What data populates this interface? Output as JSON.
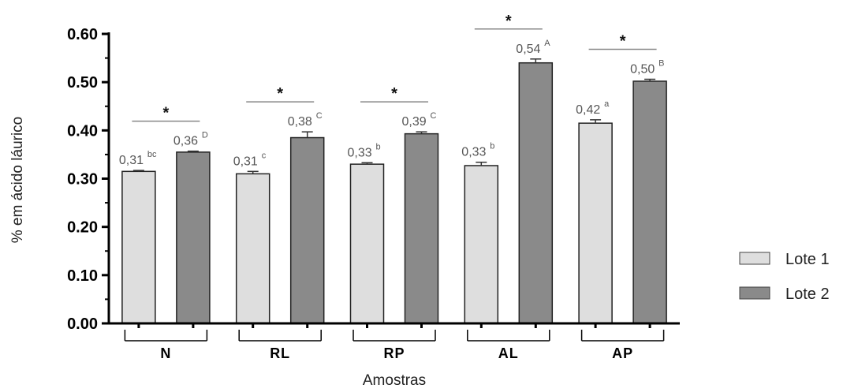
{
  "chart_data": {
    "type": "bar",
    "xlabel": "Amostras",
    "ylabel": "% em ácido láurico",
    "ylim": [
      0,
      0.6
    ],
    "yticks": [
      "0.00",
      "0.10",
      "0.20",
      "0.30",
      "0.40",
      "0.50",
      "0.60"
    ],
    "categories": [
      "N",
      "RL",
      "RP",
      "AL",
      "AP"
    ],
    "series": [
      {
        "name": "Lote 1",
        "color": "#dedede",
        "values": [
          0.315,
          0.31,
          0.33,
          0.327,
          0.415
        ],
        "errors": [
          0.002,
          0.005,
          0.003,
          0.007,
          0.007
        ],
        "labels": [
          "0,31",
          "0,31",
          "0,33",
          "0,33",
          "0,42"
        ],
        "letters": [
          "bc",
          "c",
          "b",
          "b",
          "a"
        ]
      },
      {
        "name": "Lote 2",
        "color": "#8a8a8a",
        "values": [
          0.355,
          0.385,
          0.393,
          0.54,
          0.502
        ],
        "errors": [
          0.002,
          0.012,
          0.004,
          0.008,
          0.004
        ],
        "labels": [
          "0,36",
          "0,38",
          "0,39",
          "0,54",
          "0,50"
        ],
        "letters": [
          "D",
          "C",
          "C",
          "A",
          "B"
        ]
      }
    ],
    "significance_marks": [
      "*",
      "*",
      "*",
      "*",
      "*"
    ],
    "legend_position": "right"
  }
}
